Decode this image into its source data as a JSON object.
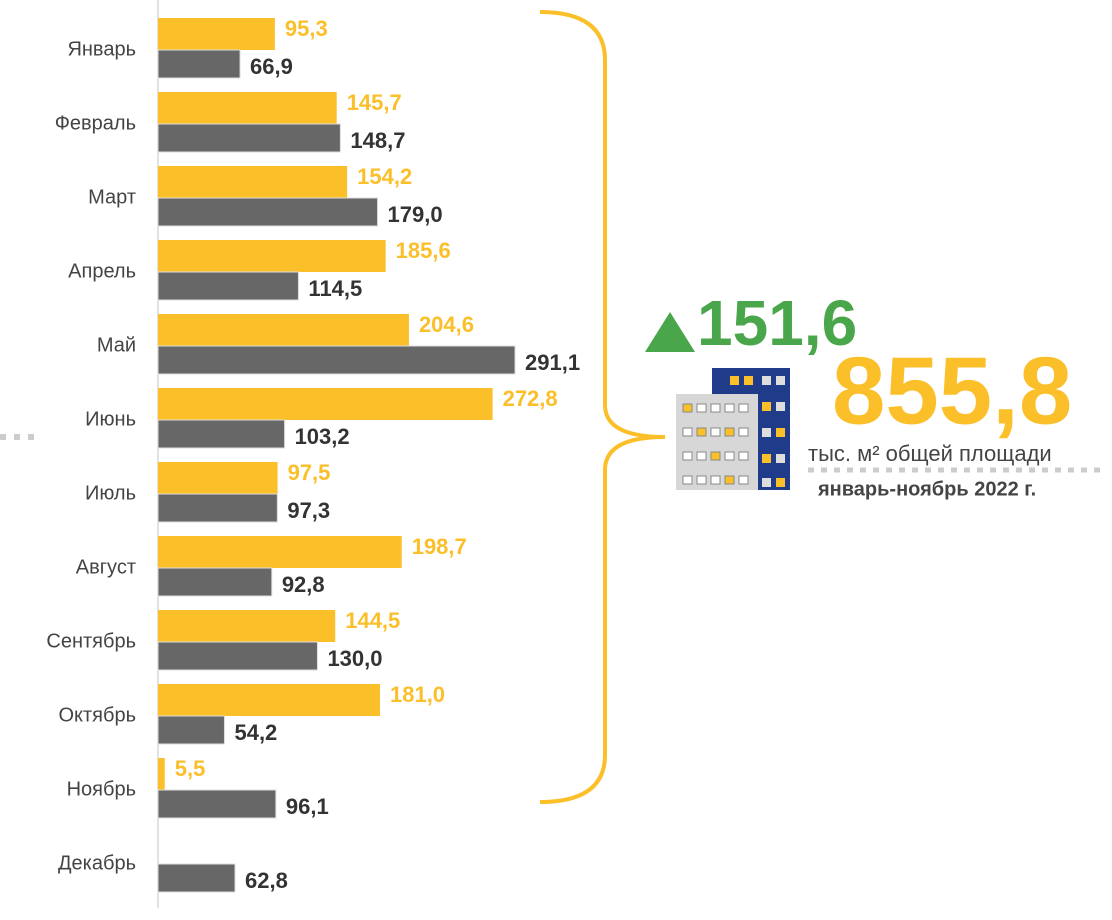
{
  "chart_data": {
    "type": "hbar",
    "categories": [
      "Январь",
      "Февраль",
      "Март",
      "Апрель",
      "Май",
      "Июнь",
      "Июль",
      "Август",
      "Сентябрь",
      "Октябрь",
      "Ноябрь",
      "Декабрь"
    ],
    "series": [
      {
        "color": "#fbbf2a",
        "values": [
          95.3,
          145.7,
          154.2,
          185.6,
          204.6,
          272.8,
          97.5,
          198.7,
          144.5,
          181.0,
          5.5,
          null
        ],
        "value_labels": [
          "95,3",
          "145,7",
          "154,2",
          "185,6",
          "204,6",
          "272,8",
          "97,5",
          "198,7",
          "144,5",
          "181,0",
          "5,5",
          null
        ]
      },
      {
        "color": "#676767",
        "values": [
          66.9,
          148.7,
          179.0,
          114.5,
          291.1,
          103.2,
          97.3,
          92.8,
          130.0,
          54.2,
          96.1,
          62.8
        ],
        "value_labels": [
          "66,9",
          "148,7",
          "179,0",
          "114,5",
          "291,1",
          "103,2",
          "97,3",
          "92,8",
          "130,0",
          "54,2",
          "96,1",
          "62,8"
        ]
      }
    ],
    "xlim": [
      0,
      300
    ],
    "annotations": {
      "change": "151,6",
      "total": "855,8",
      "unit": "тыс. м² общей площади",
      "period": "январь-ноябрь 2022 г."
    }
  }
}
